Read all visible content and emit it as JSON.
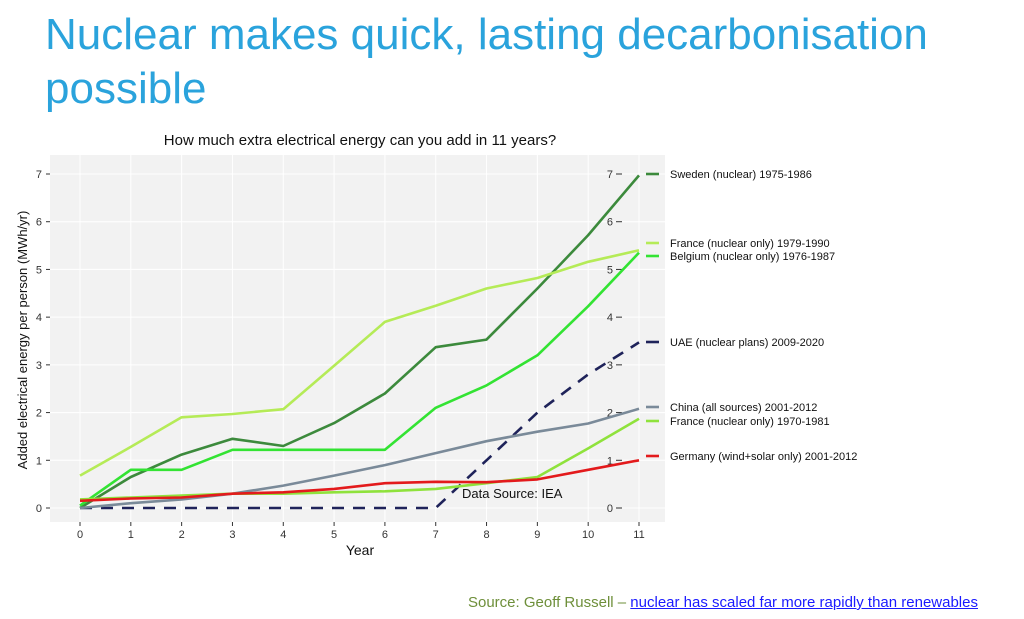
{
  "slide": {
    "title": "Nuclear makes quick, lasting decarbonisation possible",
    "source_prefix": "Source: Geoff Russell – ",
    "source_link_text": "nuclear has scaled far more rapidly than renewables"
  },
  "chart_data": {
    "type": "line",
    "title": "How much extra electrical energy can you add in 11 years?",
    "xlabel": "Year",
    "ylabel": "Added electrical energy per person (MWh/yr)",
    "xlim": [
      0,
      11
    ],
    "ylim": [
      0,
      7
    ],
    "x_ticks": [
      0,
      1,
      2,
      3,
      4,
      5,
      6,
      7,
      8,
      9,
      10,
      11
    ],
    "y_ticks": [
      0,
      1,
      2,
      3,
      4,
      5,
      6,
      7
    ],
    "grid": true,
    "legend_position": "right, labels at line ends",
    "annotation": "Data Source: IEA",
    "series": [
      {
        "name": "Sweden (nuclear) 1975-1986",
        "color": "#3C8A3C",
        "dashed": false,
        "x": [
          0,
          1,
          2,
          3,
          4,
          5,
          6,
          7,
          8,
          9,
          10,
          11
        ],
        "values": [
          0.0,
          0.65,
          1.12,
          1.45,
          1.3,
          1.78,
          2.4,
          3.37,
          3.53,
          4.6,
          5.72,
          6.97
        ]
      },
      {
        "name": "France (nuclear only) 1979-1990",
        "color": "#B5EB57",
        "dashed": false,
        "x": [
          0,
          1,
          2,
          3,
          4,
          5,
          6,
          7,
          8,
          9,
          10,
          11
        ],
        "values": [
          0.68,
          1.28,
          1.9,
          1.97,
          2.07,
          2.98,
          3.9,
          4.24,
          4.6,
          4.82,
          5.16,
          5.4
        ]
      },
      {
        "name": "Belgium (nuclear only) 1976-1987",
        "color": "#33E333",
        "dashed": false,
        "x": [
          0,
          1,
          2,
          3,
          4,
          5,
          6,
          7,
          8,
          9,
          10,
          11
        ],
        "values": [
          0.05,
          0.8,
          0.8,
          1.22,
          1.22,
          1.22,
          1.22,
          2.1,
          2.57,
          3.2,
          4.23,
          5.35
        ]
      },
      {
        "name": "UAE (nuclear plans) 2009-2020",
        "color": "#1F235A",
        "dashed": true,
        "x": [
          0,
          1,
          2,
          3,
          4,
          5,
          6,
          7,
          8,
          9,
          10,
          11
        ],
        "values": [
          0,
          0,
          0,
          0,
          0,
          0,
          0,
          0,
          1.0,
          2.0,
          2.8,
          3.47
        ]
      },
      {
        "name": "China (all sources) 2001-2012",
        "color": "#7A8A99",
        "dashed": false,
        "x": [
          0,
          1,
          2,
          3,
          4,
          5,
          6,
          7,
          8,
          9,
          10,
          11
        ],
        "values": [
          0.0,
          0.1,
          0.18,
          0.3,
          0.47,
          0.68,
          0.9,
          1.15,
          1.4,
          1.6,
          1.77,
          2.08
        ]
      },
      {
        "name": "France (nuclear only) 1970-1981",
        "color": "#8FE23C",
        "dashed": false,
        "x": [
          0,
          1,
          2,
          3,
          4,
          5,
          6,
          7,
          8,
          9,
          10,
          11
        ],
        "values": [
          0.18,
          0.22,
          0.26,
          0.3,
          0.3,
          0.33,
          0.35,
          0.4,
          0.52,
          0.65,
          1.25,
          1.87
        ]
      },
      {
        "name": "Germany (wind+solar only) 2001-2012",
        "color": "#E31A1C",
        "dashed": false,
        "x": [
          0,
          1,
          2,
          3,
          4,
          5,
          6,
          7,
          8,
          9,
          10,
          11
        ],
        "values": [
          0.15,
          0.2,
          0.22,
          0.3,
          0.33,
          0.4,
          0.52,
          0.55,
          0.54,
          0.6,
          0.8,
          1.0
        ]
      }
    ]
  }
}
